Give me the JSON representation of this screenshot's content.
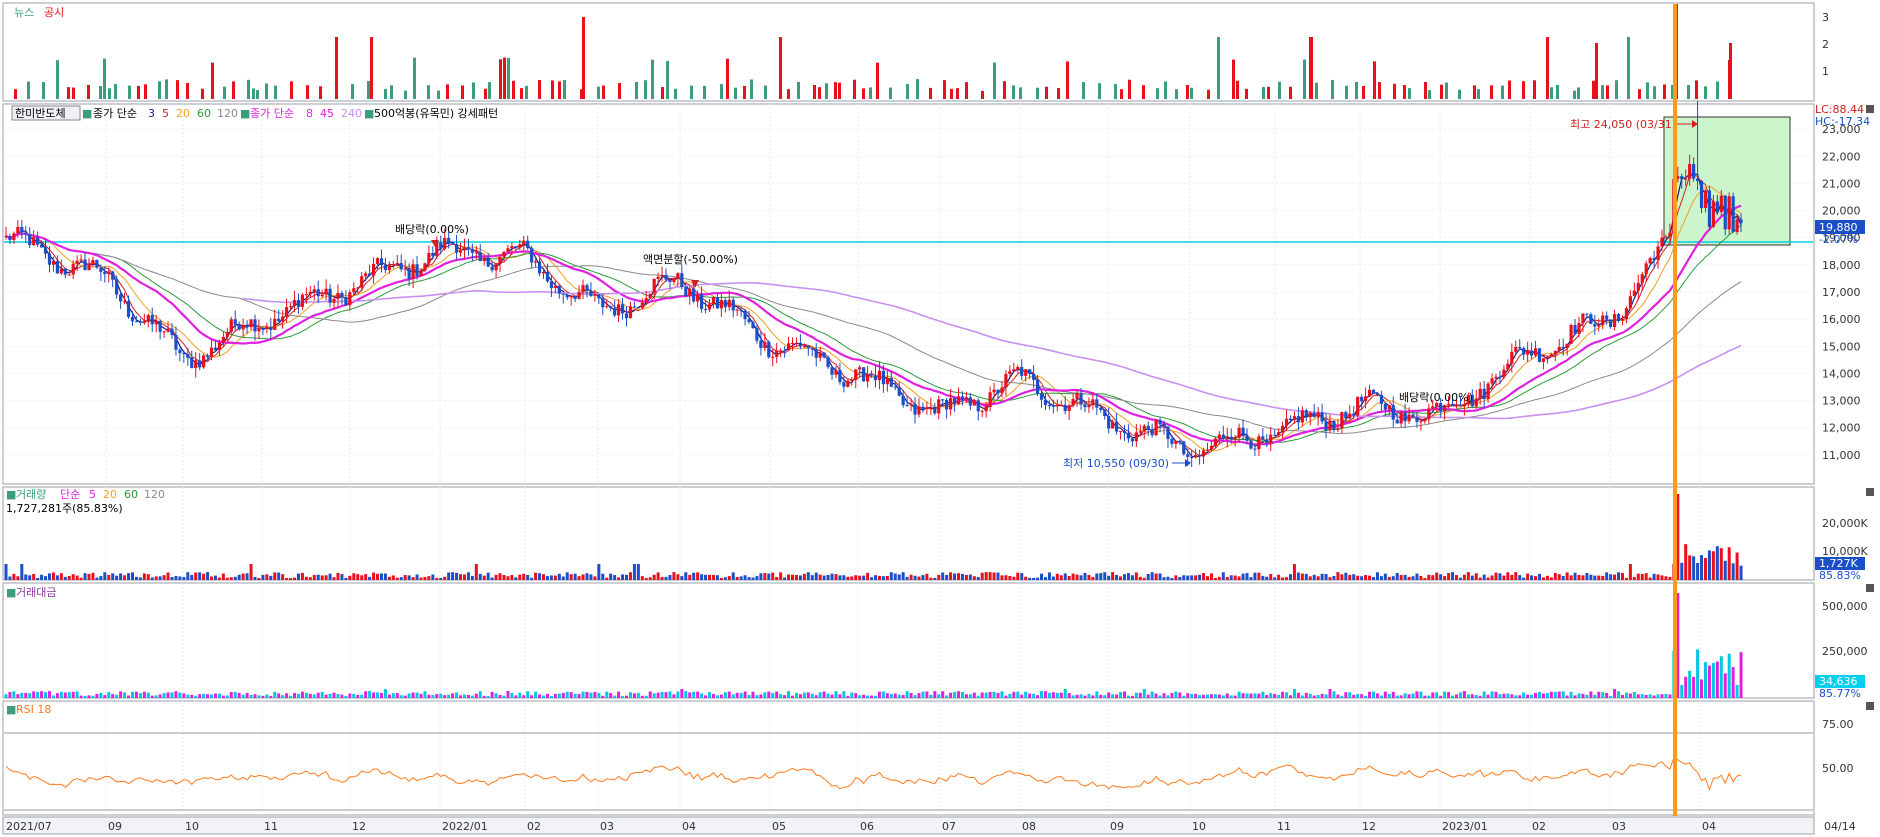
{
  "colors": {
    "up": "#e8101c",
    "down": "#1a4fc8",
    "news": "#3a9d7c",
    "disclosure": "#e8101c",
    "ma3": "#1a1a8a",
    "ma5": "#d02020",
    "ma20": "#f0a020",
    "ma60": "#2a9a3a",
    "ma120": "#8a8a8a",
    "sma8": "#e020e0",
    "sma45": "#e020e0",
    "sma240": "#c890f0",
    "cross": "#ff8c00",
    "level": "#00d0e0"
  },
  "news_panel": {
    "news_label": "뉴스",
    "disclosure_label": "공시",
    "axis": [
      "3",
      "2",
      "1"
    ]
  },
  "price_panel": {
    "stock_name": "한미반도체",
    "legend": {
      "close_simple": "종가 단순",
      "p3": "3",
      "p5": "5",
      "p20": "20",
      "p60": "60",
      "p120": "120",
      "close_simple2": "종가 단순",
      "p8": "8",
      "p45": "45",
      "p240": "240",
      "pattern": "500억봉(유목민) 강세패턴"
    },
    "lc": "LC:88.44",
    "hc": "HC:-17.34",
    "current": "19,880",
    "change": "-2.07%",
    "high_annot": "최고 24,050 (03/31)",
    "low_annot": "최저 10,550 (09/30)",
    "events": [
      "배당락(0.00%)",
      "액면분할(-50.00%)",
      "배당락(0.00%)"
    ],
    "axis": [
      "23,000",
      "22,000",
      "21,000",
      "20,000",
      "19,000",
      "18,000",
      "17,000",
      "16,000",
      "15,000",
      "14,000",
      "13,000",
      "12,000",
      "11,000"
    ]
  },
  "volume_panel": {
    "title": "거래량",
    "ma_label": "단순",
    "p5": "5",
    "p20": "20",
    "p60": "60",
    "p120": "120",
    "info": "1,727,281주(85.83%)",
    "current": "1,727K",
    "pct": "85.83%",
    "axis": [
      "20,000K",
      "10,000K"
    ]
  },
  "amount_panel": {
    "title": "거래대금",
    "current": "34,636",
    "pct": "85.77%",
    "axis": [
      "500,000",
      "250,000"
    ]
  },
  "rsi_panel": {
    "title": "RSI 18",
    "axis": [
      "75.00",
      "50.00"
    ]
  },
  "x_axis": [
    "2021/07",
    "09",
    "10",
    "11",
    "12",
    "2022/01",
    "02",
    "03",
    "04",
    "05",
    "06",
    "07",
    "08",
    "09",
    "10",
    "11",
    "12",
    "2023/01",
    "02",
    "03",
    "04",
    "04/14"
  ],
  "chart_data": {
    "type": "candlestick",
    "title": "한미반도체",
    "x": [
      "2021/07",
      "09",
      "10",
      "11",
      "12",
      "2022/01",
      "02",
      "03",
      "04",
      "05",
      "06",
      "07",
      "08",
      "09",
      "10",
      "11",
      "12",
      "2023/01",
      "02",
      "03",
      "04"
    ],
    "close_approx": [
      19000,
      17500,
      14500,
      16000,
      17200,
      18500,
      18300,
      16300,
      17400,
      15200,
      13900,
      12500,
      13800,
      12300,
      11200,
      11800,
      12800,
      12500,
      14800,
      16000,
      20300
    ],
    "ylim": [
      10000,
      24000
    ],
    "high": {
      "value": 24050,
      "date": "03/31"
    },
    "low": {
      "value": 10550,
      "date": "09/30"
    },
    "last_close": 19880,
    "last_change": "-2.07%",
    "rsi_ylim": [
      30,
      90
    ]
  }
}
